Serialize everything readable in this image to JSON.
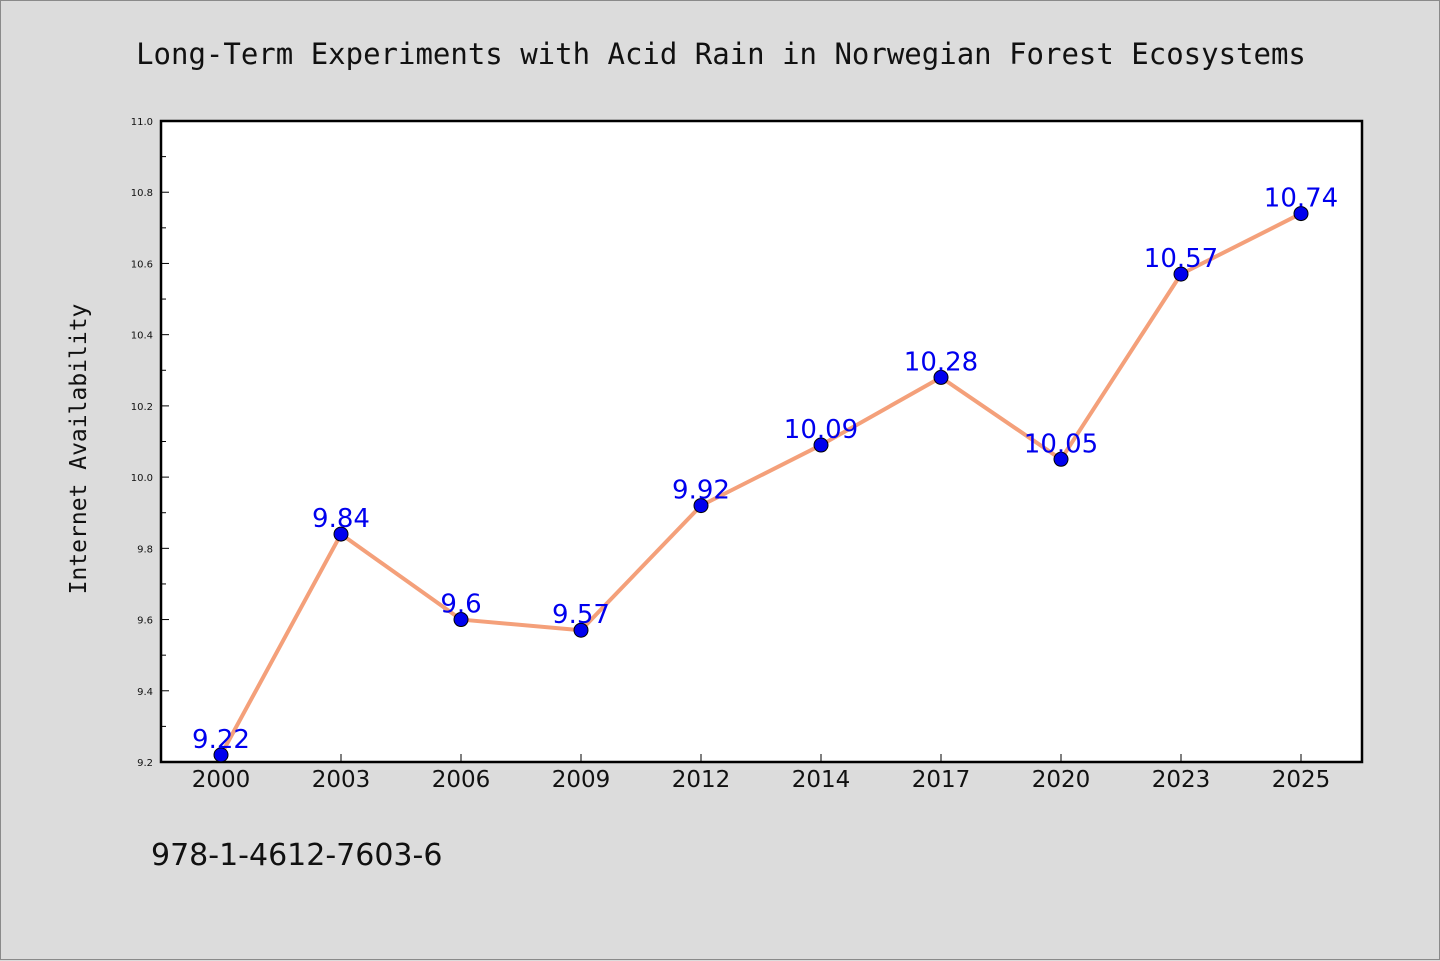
{
  "chart_data": {
    "type": "line",
    "title": "Long-Term Experiments with Acid Rain in Norwegian Forest Ecosystems",
    "xlabel": "",
    "ylabel": "Internet Availability",
    "categories": [
      "2000",
      "2003",
      "2006",
      "2009",
      "2012",
      "2014",
      "2017",
      "2020",
      "2023",
      "2025"
    ],
    "series": [
      {
        "values": [
          9.22,
          9.84,
          9.6,
          9.57,
          9.92,
          10.09,
          10.28,
          10.05,
          10.57,
          10.74
        ],
        "data_labels": [
          "9.22",
          "9.84",
          "9.6",
          "9.57",
          "9.92",
          "10.09",
          "10.28",
          "10.05",
          "10.57",
          "10.74"
        ]
      }
    ],
    "ylim": [
      9.2,
      11.0
    ],
    "yticks": [
      "9.2",
      "9.4",
      "9.6",
      "9.8",
      "10.0",
      "10.2",
      "10.4",
      "10.6",
      "10.8",
      "11.0"
    ],
    "grid": false,
    "legend": "none",
    "colors": {
      "line": "#f4a07a",
      "marker": "#0000ee",
      "data_label": "#0000ee",
      "background": "#dcdcdc",
      "plot_area": "#ffffff"
    }
  },
  "footer": {
    "isbn": "978-1-4612-7603-6"
  }
}
